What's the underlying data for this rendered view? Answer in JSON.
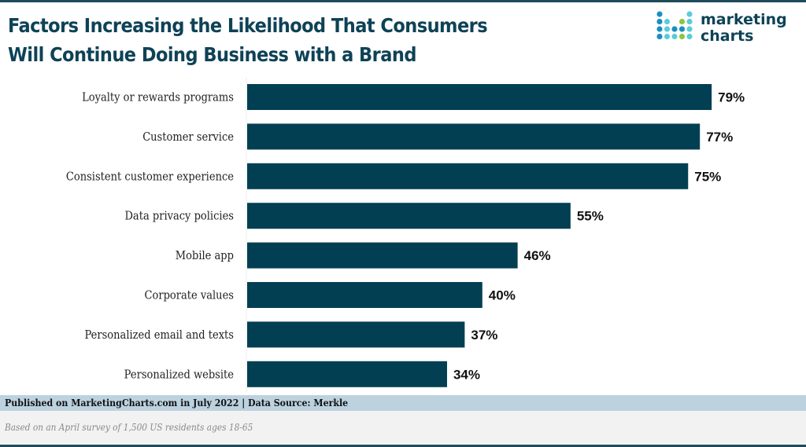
{
  "header": {
    "title_line1": "Factors Increasing the Likelihood That Consumers",
    "title_line2": "Will Continue Doing Business with a Brand"
  },
  "logo": {
    "line1": "marketing",
    "line2": "charts",
    "colors": {
      "dark_blue": "#1a8fc0",
      "teal": "#5ccbd8",
      "green": "#8dc63f"
    }
  },
  "colors": {
    "bar": "#033f53",
    "title": "#0e4256",
    "footer_band": "#bcd2df"
  },
  "chart_data": {
    "type": "bar",
    "orientation": "horizontal",
    "title": "Factors Increasing the Likelihood That Consumers Will Continue Doing Business with a Brand",
    "categories": [
      "Loyalty or rewards programs",
      "Customer service",
      "Consistent customer experience",
      "Data privacy policies",
      "Mobile app",
      "Corporate values",
      "Personalized email and texts",
      "Personalized website"
    ],
    "values": [
      79,
      77,
      75,
      55,
      46,
      40,
      37,
      34
    ],
    "labels": [
      "79%",
      "77%",
      "75%",
      "55%",
      "46%",
      "40%",
      "37%",
      "34%"
    ],
    "unit": "%",
    "xlabel": "",
    "ylabel": "",
    "xlim": [
      0,
      100
    ],
    "grid": false,
    "legend": "none"
  },
  "footer": {
    "source": "Published on MarketingCharts.com in July 2022 | Data Source: Merkle",
    "note": "Based on an April survey of 1,500 US residents ages 18-65"
  }
}
